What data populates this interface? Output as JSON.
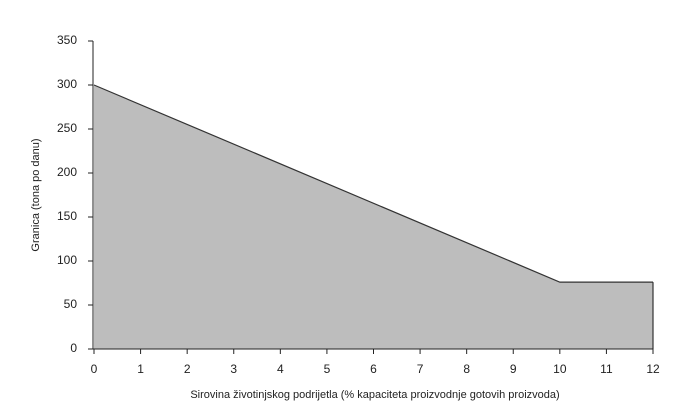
{
  "chart_data": {
    "type": "area",
    "x_label": "Sirovina životinjskog podrijetla (% kapaciteta proizvodnje gotovih proizvoda)",
    "y_label": "Granica (tona po danu)",
    "x": [
      0,
      10,
      12
    ],
    "values": [
      300,
      76,
      76
    ],
    "color": "#bdbdbd",
    "xlim": [
      0,
      12
    ],
    "xticks": [
      0,
      1,
      2,
      3,
      4,
      5,
      6,
      7,
      8,
      9,
      10,
      11,
      12
    ],
    "ylim": [
      0,
      350
    ],
    "yticks": [
      0,
      50,
      100,
      150,
      200,
      250,
      300,
      350
    ]
  }
}
